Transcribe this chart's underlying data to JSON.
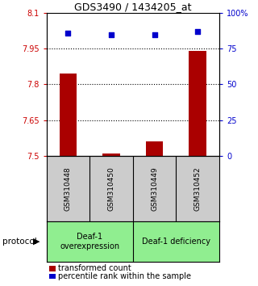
{
  "title": "GDS3490 / 1434205_at",
  "samples": [
    "GSM310448",
    "GSM310450",
    "GSM310449",
    "GSM310452"
  ],
  "red_values": [
    7.845,
    7.51,
    7.562,
    7.942
  ],
  "blue_values": [
    86.0,
    84.5,
    84.5,
    87.0
  ],
  "ylim_left": [
    7.5,
    8.1
  ],
  "ylim_right": [
    0,
    100
  ],
  "yticks_left": [
    7.5,
    7.65,
    7.8,
    7.95,
    8.1
  ],
  "yticks_right": [
    0,
    25,
    50,
    75,
    100
  ],
  "ytick_labels_left": [
    "7.5",
    "7.65",
    "7.8",
    "7.95",
    "8.1"
  ],
  "ytick_labels_right": [
    "0",
    "25",
    "50",
    "75",
    "100%"
  ],
  "groups": [
    {
      "label": "Deaf-1\noverexpression",
      "color": "#90EE90"
    },
    {
      "label": "Deaf-1 deficiency",
      "color": "#90EE90"
    }
  ],
  "bar_color": "#AA0000",
  "dot_color": "#0000CC",
  "bg_color": "#ffffff",
  "tick_color_left": "#CC0000",
  "tick_color_right": "#0000CC",
  "protocol_label": "protocol",
  "legend_red": "transformed count",
  "legend_blue": "percentile rank within the sample"
}
